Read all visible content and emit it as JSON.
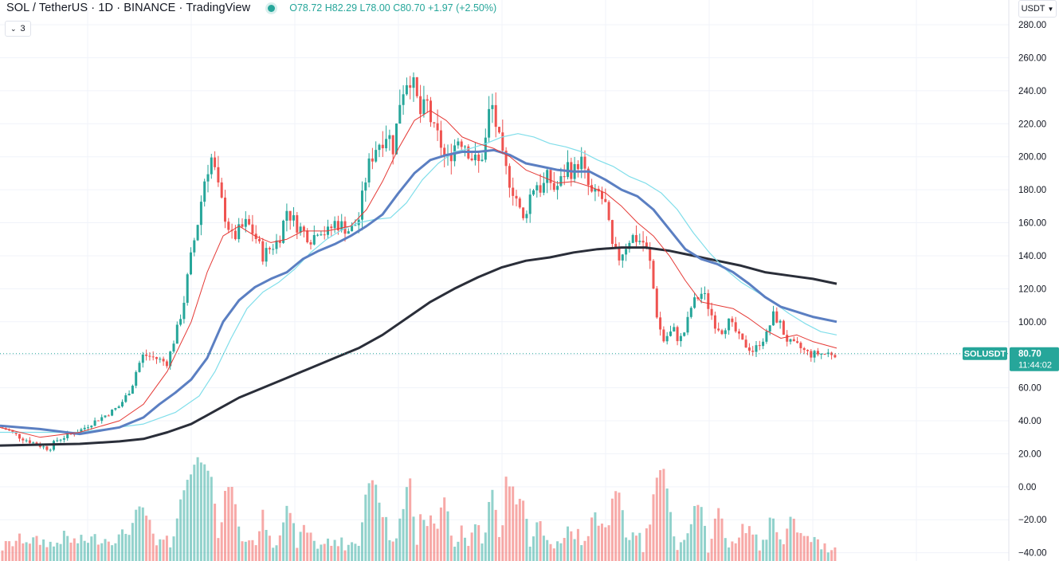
{
  "header": {
    "symbol_title": "SOL / TetherUS · 1D · BINANCE · TradingView",
    "ohlc": "O78.72 H82.29 L78.00 C80.70 +1.97 (+2.50%)",
    "status_color": "#26a69a"
  },
  "indicators_button": {
    "label": "3",
    "icon": "chevron-down-icon"
  },
  "currency_button": {
    "label": "USDT",
    "icon": "chevron-down-icon"
  },
  "price_tag": {
    "symbol_label": "SOLUSDT",
    "price": "80.70",
    "countdown": "11:44:02",
    "color": "#26a69a"
  },
  "chart_data": {
    "type": "candlestick",
    "ylim": [
      -45,
      295
    ],
    "y_ticks": [
      280,
      260,
      240,
      220,
      200,
      180,
      160,
      140,
      120,
      100,
      80,
      60,
      40,
      20,
      0,
      -20,
      -40
    ],
    "y_tick_labels": [
      "280.00",
      "260.00",
      "240.00",
      "220.00",
      "200.00",
      "180.00",
      "160.00",
      "140.00",
      "120.00",
      "100.00",
      "80.00",
      "60.00",
      "40.00",
      "20.00",
      "0.00",
      "−20.00",
      "−40.00"
    ],
    "grid": true,
    "last_price": 80.7,
    "colors": {
      "up": "#26a69a",
      "down": "#ef5350",
      "ma_fast": "#e53935",
      "ma_mid_light": "#80deea",
      "ma_mid": "#5b7fc2",
      "ma_slow": "#2a2e39"
    },
    "price_path": {
      "x": [
        0,
        12,
        25,
        40,
        55,
        62,
        70,
        85,
        100,
        110,
        120,
        135,
        150,
        165,
        172,
        180,
        195,
        210,
        222,
        230,
        238,
        248,
        258,
        266,
        274,
        282,
        292,
        300,
        310,
        320,
        330,
        340,
        350,
        360,
        370,
        380,
        392,
        400,
        410,
        420,
        430,
        440,
        450,
        460,
        470,
        478,
        486,
        494,
        502,
        508,
        514,
        520,
        528,
        536,
        544,
        552,
        560,
        568,
        576,
        584,
        592,
        600,
        608,
        616,
        624,
        632,
        640,
        648,
        656,
        664,
        672,
        680,
        688,
        696,
        704,
        712,
        720,
        728,
        736,
        744,
        752,
        760,
        768,
        776,
        784,
        792,
        800,
        808,
        816,
        824,
        832,
        838,
        846,
        852,
        860,
        868,
        876,
        882,
        890,
        898,
        906,
        914,
        922,
        930,
        938,
        946,
        954,
        962,
        970,
        978,
        986,
        994,
        1002,
        1010,
        1018,
        1026,
        1034,
        1042,
        1050
      ],
      "y": [
        36,
        34,
        30,
        27,
        24,
        23,
        28,
        31,
        34,
        37,
        40,
        44,
        49,
        60,
        72,
        80,
        78,
        75,
        95,
        110,
        135,
        160,
        190,
        200,
        180,
        165,
        150,
        155,
        160,
        152,
        140,
        145,
        150,
        168,
        160,
        155,
        150,
        158,
        153,
        160,
        158,
        155,
        162,
        190,
        205,
        210,
        215,
        205,
        235,
        245,
        250,
        240,
        225,
        232,
        215,
        210,
        195,
        205,
        212,
        208,
        200,
        195,
        205,
        235,
        215,
        195,
        185,
        175,
        160,
        175,
        185,
        180,
        188,
        180,
        185,
        195,
        190,
        200,
        185,
        175,
        178,
        170,
        145,
        138,
        145,
        152,
        150,
        148,
        135,
        105,
        88,
        92,
        95,
        88,
        95,
        110,
        115,
        118,
        108,
        98,
        95,
        100,
        95,
        88,
        85,
        82,
        88,
        92,
        104,
        100,
        90,
        86,
        85,
        82,
        80,
        80.7,
        80.5,
        81,
        80.7
      ]
    },
    "ma_fast": {
      "x": [
        0,
        50,
        100,
        150,
        180,
        210,
        240,
        260,
        280,
        300,
        320,
        340,
        360,
        380,
        410,
        440,
        460,
        480,
        500,
        520,
        540,
        560,
        580,
        600,
        620,
        640,
        660,
        680,
        700,
        720,
        740,
        760,
        780,
        800,
        820,
        840,
        860,
        880,
        900,
        920,
        940,
        960,
        980,
        1000,
        1020,
        1050
      ],
      "y": [
        36,
        30,
        33,
        40,
        50,
        70,
        100,
        130,
        152,
        158,
        152,
        148,
        150,
        155,
        155,
        158,
        168,
        185,
        205,
        222,
        228,
        222,
        212,
        208,
        205,
        200,
        192,
        188,
        184,
        185,
        182,
        178,
        170,
        160,
        152,
        140,
        125,
        112,
        110,
        108,
        102,
        95,
        90,
        92,
        88,
        84
      ]
    },
    "ma_mid": {
      "x": [
        0,
        50,
        100,
        150,
        180,
        200,
        220,
        240,
        260,
        280,
        300,
        320,
        340,
        360,
        380,
        400,
        420,
        440,
        460,
        480,
        500,
        520,
        540,
        560,
        580,
        600,
        620,
        640,
        660,
        680,
        700,
        720,
        740,
        760,
        780,
        800,
        820,
        840,
        860,
        880,
        900,
        920,
        940,
        960,
        980,
        1000,
        1020,
        1050
      ],
      "y": [
        37,
        35,
        32,
        36,
        42,
        50,
        57,
        65,
        78,
        100,
        113,
        121,
        126,
        130,
        138,
        143,
        147,
        152,
        158,
        165,
        178,
        190,
        198,
        201,
        203,
        203,
        204,
        201,
        196,
        194,
        192,
        191,
        191,
        186,
        180,
        176,
        168,
        156,
        144,
        138,
        135,
        130,
        123,
        115,
        109,
        106,
        103,
        100
      ]
    },
    "ma_mid_light": {
      "x": [
        0,
        100,
        180,
        220,
        250,
        270,
        290,
        310,
        330,
        350,
        370,
        390,
        410,
        430,
        450,
        470,
        490,
        510,
        530,
        550,
        570,
        590,
        610,
        630,
        650,
        670,
        690,
        710,
        730,
        750,
        770,
        790,
        810,
        830,
        850,
        870,
        890,
        910,
        930,
        950,
        970,
        990,
        1010,
        1030,
        1050
      ],
      "y": [
        33,
        33,
        38,
        45,
        55,
        70,
        90,
        108,
        118,
        124,
        132,
        142,
        150,
        156,
        160,
        162,
        163,
        172,
        186,
        196,
        203,
        205,
        208,
        212,
        214,
        212,
        208,
        206,
        203,
        198,
        194,
        188,
        184,
        178,
        168,
        154,
        142,
        132,
        124,
        118,
        112,
        105,
        99,
        94,
        92
      ]
    },
    "ma_slow": {
      "x": [
        0,
        50,
        100,
        150,
        180,
        210,
        240,
        270,
        300,
        330,
        360,
        390,
        420,
        450,
        480,
        510,
        540,
        570,
        600,
        630,
        660,
        690,
        720,
        750,
        780,
        810,
        840,
        870,
        900,
        930,
        960,
        990,
        1020,
        1050
      ],
      "y": [
        25,
        25.5,
        26,
        27.5,
        29,
        33,
        38,
        46,
        54,
        60,
        66,
        72,
        78,
        84,
        92,
        102,
        112,
        120,
        127,
        133,
        137,
        139,
        142,
        144,
        145,
        145,
        143,
        140,
        137,
        134,
        130,
        128,
        126,
        123
      ]
    },
    "volume": {
      "x_start": 3,
      "x_step": 4.3,
      "base_value": -44,
      "max_value": 25
    }
  }
}
